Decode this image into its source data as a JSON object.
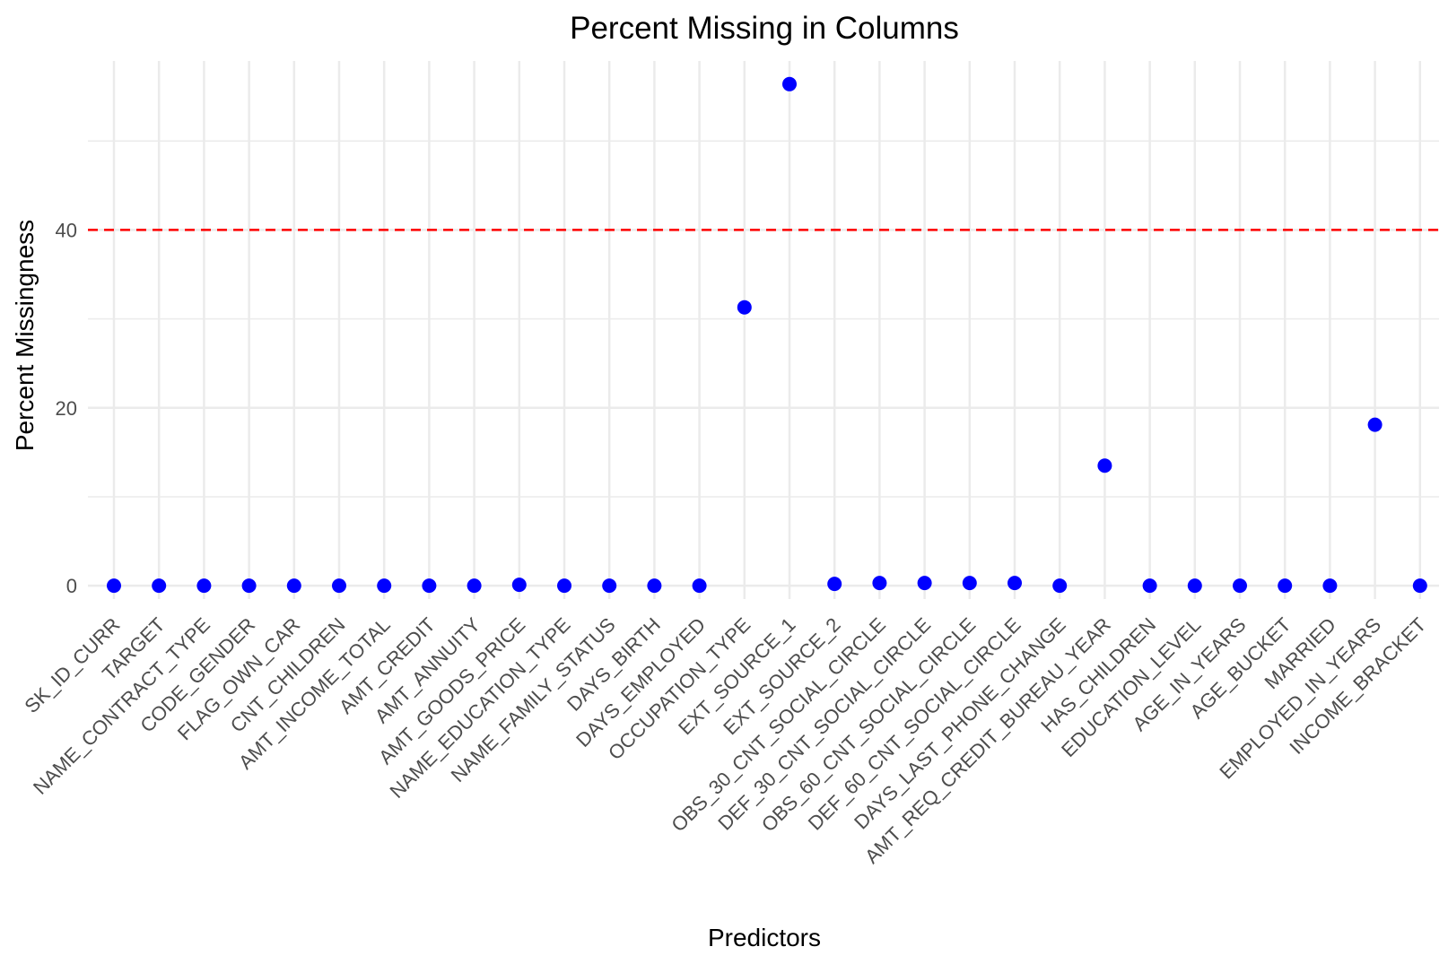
{
  "chart_data": {
    "type": "scatter",
    "title": "Percent Missing in Columns",
    "xlabel": "Predictors",
    "ylabel": "Percent Missingness",
    "categories": [
      "SK_ID_CURR",
      "TARGET",
      "NAME_CONTRACT_TYPE",
      "CODE_GENDER",
      "FLAG_OWN_CAR",
      "CNT_CHILDREN",
      "AMT_INCOME_TOTAL",
      "AMT_CREDIT",
      "AMT_ANNUITY",
      "AMT_GOODS_PRICE",
      "NAME_EDUCATION_TYPE",
      "NAME_FAMILY_STATUS",
      "DAYS_BIRTH",
      "DAYS_EMPLOYED",
      "OCCUPATION_TYPE",
      "EXT_SOURCE_1",
      "EXT_SOURCE_2",
      "OBS_30_CNT_SOCIAL_CIRCLE",
      "DEF_30_CNT_SOCIAL_CIRCLE",
      "OBS_60_CNT_SOCIAL_CIRCLE",
      "DEF_60_CNT_SOCIAL_CIRCLE",
      "DAYS_LAST_PHONE_CHANGE",
      "AMT_REQ_CREDIT_BUREAU_YEAR",
      "HAS_CHILDREN",
      "EDUCATION_LEVEL",
      "AGE_IN_YEARS",
      "AGE_BUCKET",
      "MARRIED",
      "EMPLOYED_IN_YEARS",
      "INCOME_BRACKET"
    ],
    "values": [
      0,
      0,
      0,
      0,
      0,
      0,
      0,
      0,
      0,
      0.1,
      0,
      0,
      0,
      0,
      31.3,
      56.4,
      0.2,
      0.3,
      0.3,
      0.3,
      0.3,
      0,
      13.5,
      0,
      0,
      0,
      0,
      0,
      18.1,
      0
    ],
    "ylim": [
      -1.5,
      59
    ],
    "yticks": [
      0,
      20,
      40
    ],
    "reference_line": {
      "y": 40,
      "color": "#ff0000",
      "style": "dashed"
    },
    "point_color": "#0000ff",
    "grid": true,
    "legend": "none"
  }
}
